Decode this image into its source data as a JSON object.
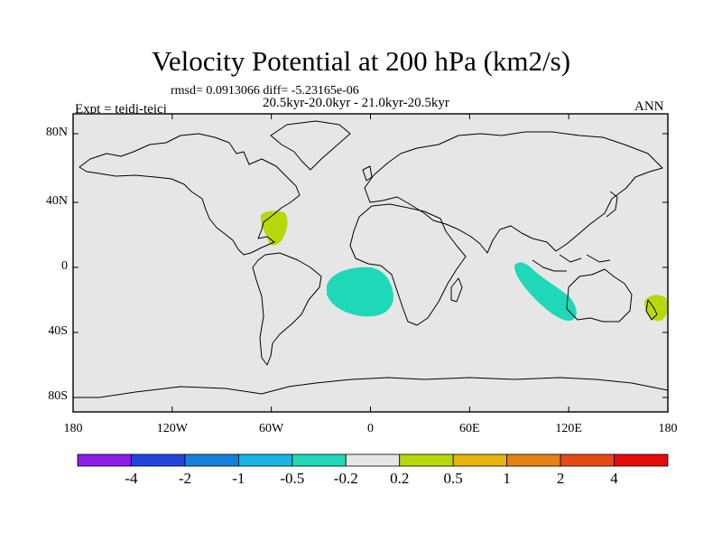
{
  "title": "Velocity Potential at 200 hPa (km2/s)",
  "stats_line": "rmsd= 0.0913066 diff= -5.23165e-06",
  "period_line": "20.5kyr-20.0kyr - 21.0kyr-20.5kyr",
  "experiment_label": "Expt = tejdj-tejcj",
  "season_label": "ANN",
  "axes": {
    "lat_ticks": [
      "80N",
      "40N",
      "0",
      "40S",
      "80S"
    ],
    "lon_ticks": [
      "180",
      "120W",
      "60W",
      "0",
      "60E",
      "120E",
      "180"
    ]
  },
  "map_style": {
    "ocean_fill": "#e6e6e6",
    "coast_color": "#000000",
    "frame_color": "#000000"
  },
  "anomalies": [
    {
      "name": "gulf-of-mexico-positive",
      "color": "#b8d80c"
    },
    {
      "name": "south-atlantic-negative",
      "color": "#1ed8b8"
    },
    {
      "name": "indian-ocean-negative",
      "color": "#1ed8b8"
    },
    {
      "name": "tasman-positive",
      "color": "#b8d80c"
    }
  ],
  "colorbar": {
    "colors": [
      "#8c1ce6",
      "#2244dd",
      "#1482dd",
      "#18b4e6",
      "#1ed8b8",
      "#e6e6e6",
      "#b8d80c",
      "#e6b40a",
      "#e68214",
      "#e64a14",
      "#e60a0a"
    ],
    "labels": [
      "-4",
      "-2",
      "-1",
      "-0.5",
      "-0.2",
      "0.2",
      "0.5",
      "1",
      "2",
      "4"
    ]
  }
}
